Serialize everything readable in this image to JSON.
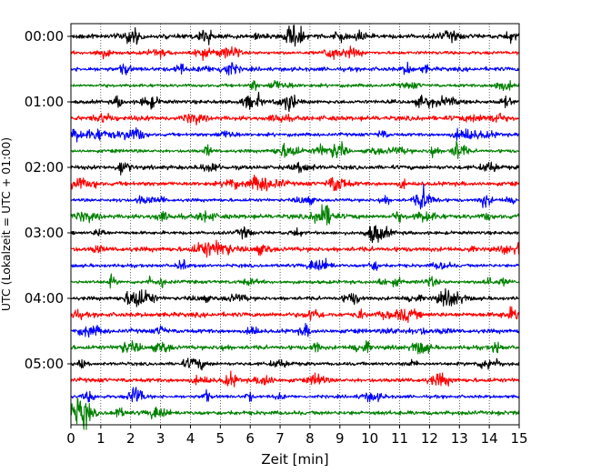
{
  "chart_data": {
    "type": "line",
    "title": "",
    "xlabel": "Zeit  [min]",
    "ylabel": "UTC (Lokalzeit = UTC + 01:00)",
    "xlim": [
      0,
      15
    ],
    "x_ticks": [
      "0",
      "1",
      "2",
      "3",
      "4",
      "5",
      "6",
      "7",
      "8",
      "9",
      "10",
      "11",
      "12",
      "13",
      "14",
      "15"
    ],
    "y_ticks": [
      "00:00",
      "01:00",
      "02:00",
      "03:00",
      "04:00",
      "05:00"
    ],
    "x_grid": true,
    "traces_per_hour": 4,
    "trace_minutes": 15,
    "trace_colors": [
      "#000000",
      "#ff0000",
      "#0000ff",
      "#008000"
    ],
    "traces": [
      {
        "start": "00:00"
      },
      {
        "start": "00:15"
      },
      {
        "start": "00:30"
      },
      {
        "start": "00:45"
      },
      {
        "start": "01:00"
      },
      {
        "start": "01:15"
      },
      {
        "start": "01:30"
      },
      {
        "start": "01:45"
      },
      {
        "start": "02:00"
      },
      {
        "start": "02:15"
      },
      {
        "start": "02:30"
      },
      {
        "start": "02:45"
      },
      {
        "start": "03:00"
      },
      {
        "start": "03:15"
      },
      {
        "start": "03:30"
      },
      {
        "start": "03:45"
      },
      {
        "start": "04:00"
      },
      {
        "start": "04:15"
      },
      {
        "start": "04:30"
      },
      {
        "start": "04:45"
      },
      {
        "start": "05:00"
      },
      {
        "start": "05:15"
      },
      {
        "start": "05:30"
      },
      {
        "start": "05:45"
      }
    ]
  }
}
